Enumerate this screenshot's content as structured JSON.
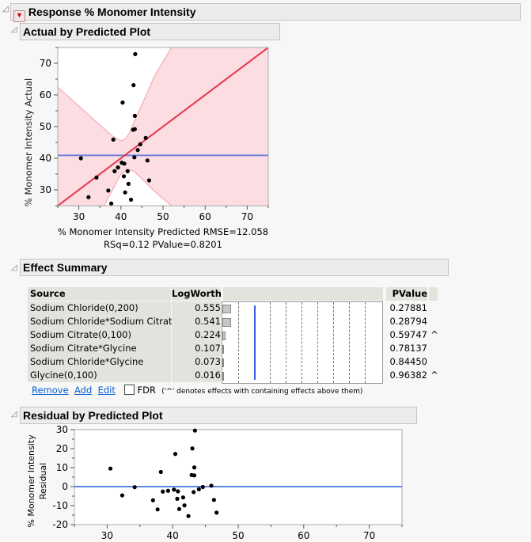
{
  "report": {
    "title": "Response % Monomer Intensity"
  },
  "actual_by_predicted": {
    "title": "Actual by Predicted Plot",
    "xlabel_line1": "% Monomer Intensity Predicted RMSE=12.058",
    "xlabel_line2": "RSq=0.12 PValue=0.8201"
  },
  "effect_summary": {
    "title": "Effect Summary",
    "headers": {
      "source": "Source",
      "logworth": "LogWorth",
      "pvalue": "PValue"
    },
    "rows": [
      {
        "source": "Sodium Chloride(0,200)",
        "logworth": "0.555",
        "pvalue": "0.27881",
        "flag": ""
      },
      {
        "source": "Sodium Chloride*Sodium Citrate",
        "logworth": "0.541",
        "pvalue": "0.28794",
        "flag": ""
      },
      {
        "source": "Sodium Citrate(0,100)",
        "logworth": "0.224",
        "pvalue": "0.59747",
        "flag": "^"
      },
      {
        "source": "Sodium Citrate*Glycine",
        "logworth": "0.107",
        "pvalue": "0.78137",
        "flag": ""
      },
      {
        "source": "Sodium Chloride*Glycine",
        "logworth": "0.073",
        "pvalue": "0.84450",
        "flag": ""
      },
      {
        "source": "Glycine(0,100)",
        "logworth": "0.016",
        "pvalue": "0.96382",
        "flag": "^"
      }
    ],
    "reference_logworth": 2,
    "remove_label": "Remove",
    "add_label": "Add",
    "edit_label": "Edit",
    "fdr_label": "FDR",
    "fdr_checked": false,
    "note": "('^' denotes effects with containing effects above them)"
  },
  "residual_by_predicted": {
    "title": "Residual by Predicted Plot",
    "ylabel_line1": "% Monomer Intensity",
    "ylabel_line2": "Residual"
  },
  "chart_data": [
    {
      "type": "scatter",
      "title": "Actual by Predicted Plot",
      "xlabel": "% Monomer Intensity Predicted",
      "ylabel": "% Monomer Intensity Actual",
      "xlim": [
        25,
        75
      ],
      "ylim": [
        25,
        75
      ],
      "xticks": [
        30,
        40,
        50,
        60,
        70
      ],
      "yticks": [
        30,
        40,
        50,
        60,
        70
      ],
      "mean_line": 40.9,
      "fit_line": "y=x",
      "colors": {
        "fit": "#e8334a",
        "mean": "#6f7fe0",
        "band": "#fcdde2",
        "band_edge": "#f4a0ac"
      },
      "band_upper": [
        [
          25,
          62.5
        ],
        [
          30,
          56.5
        ],
        [
          35,
          50.5
        ],
        [
          38,
          47
        ],
        [
          40,
          45.5
        ],
        [
          41,
          46
        ],
        [
          42,
          48
        ],
        [
          43,
          51
        ],
        [
          45,
          57
        ],
        [
          48,
          66
        ],
        [
          52,
          75
        ]
      ],
      "band_lower": [
        [
          36,
          25
        ],
        [
          38,
          30
        ],
        [
          40,
          35
        ],
        [
          41.5,
          36.5
        ],
        [
          43,
          36
        ],
        [
          45,
          33.5
        ],
        [
          48,
          29.5
        ],
        [
          52,
          25
        ]
      ],
      "points": [
        [
          43.4,
          72.9
        ],
        [
          43.0,
          63.1
        ],
        [
          40.4,
          57.6
        ],
        [
          43.3,
          53.4
        ],
        [
          42.9,
          49.0
        ],
        [
          43.3,
          49.2
        ],
        [
          38.2,
          45.9
        ],
        [
          45.9,
          46.4
        ],
        [
          44.6,
          44.4
        ],
        [
          44.0,
          42.6
        ],
        [
          43.2,
          40.3
        ],
        [
          30.5,
          40.0
        ],
        [
          46.3,
          39.3
        ],
        [
          40.2,
          38.6
        ],
        [
          40.8,
          38.3
        ],
        [
          39.3,
          37.1
        ],
        [
          38.5,
          35.9
        ],
        [
          41.6,
          35.9
        ],
        [
          40.7,
          34.3
        ],
        [
          34.2,
          33.9
        ],
        [
          46.7,
          33.0
        ],
        [
          41.8,
          31.9
        ],
        [
          37.0,
          29.8
        ],
        [
          41.0,
          29.2
        ],
        [
          32.3,
          27.7
        ],
        [
          42.4,
          26.9
        ],
        [
          37.7,
          25.7
        ]
      ]
    },
    {
      "type": "scatter",
      "title": "Residual by Predicted Plot",
      "xlabel": "",
      "ylabel": "% Monomer Intensity Residual",
      "xlim": [
        25,
        75
      ],
      "ylim": [
        -20,
        30
      ],
      "xticks": [
        30,
        40,
        50,
        60,
        70
      ],
      "yticks": [
        -20,
        -10,
        0,
        10,
        20,
        30
      ],
      "zero_line": 0,
      "colors": {
        "zero": "#5b86e5"
      },
      "points_from": "actual minus predicted of Actual by Predicted points"
    }
  ]
}
